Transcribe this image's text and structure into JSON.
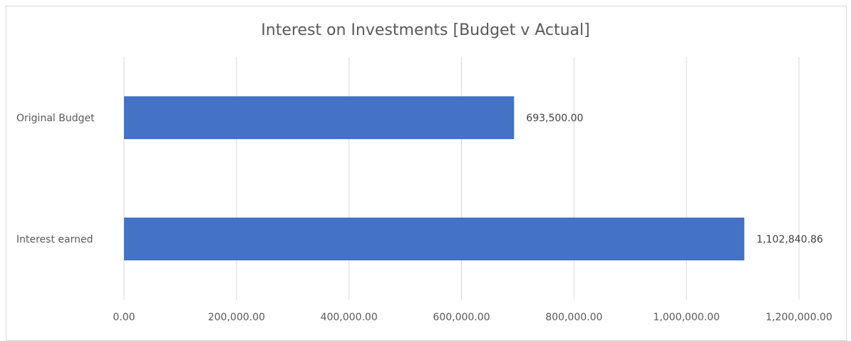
{
  "chart_data": {
    "type": "bar",
    "orientation": "horizontal",
    "title": "Interest on Investments [Budget v Actual]",
    "categories": [
      "Original Budget",
      "Interest earned"
    ],
    "values": [
      693500.0,
      1102840.86
    ],
    "data_labels": [
      "693,500.00",
      "1,102,840.86"
    ],
    "xlim": [
      0,
      1200000
    ],
    "x_ticks": [
      0,
      200000,
      400000,
      600000,
      800000,
      1000000,
      1200000
    ],
    "x_tick_labels": [
      "0.00",
      "200,000.00",
      "400,000.00",
      "600,000.00",
      "800,000.00",
      "1,000,000.00",
      "1,200,000.00"
    ],
    "xlabel": "",
    "ylabel": "",
    "grid": "vertical",
    "legend": "none",
    "bar_color": "#4472c4",
    "grid_color": "#d9d9d9",
    "text_color": "#595959"
  }
}
